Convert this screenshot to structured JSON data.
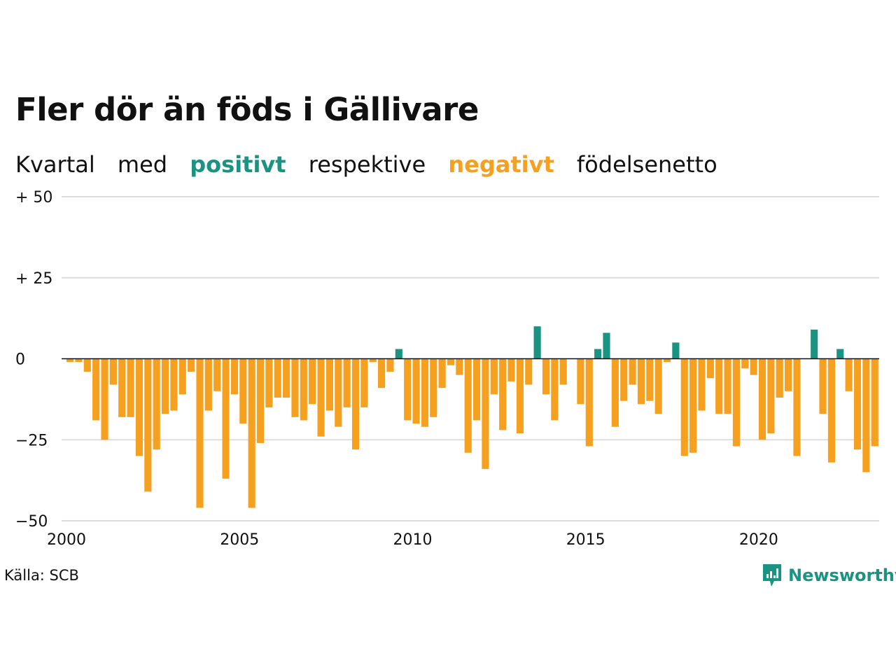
{
  "title": "Fler dör än föds i Gällivare",
  "subtitle": {
    "part1": "Kvartal",
    "part2": "med",
    "positive": "positivt",
    "part3": "respektive",
    "negative": "negativt",
    "part4": "födelsenetto"
  },
  "colors": {
    "positive": "#1a9383",
    "negative": "#f5a01e",
    "grid": "#dddddd",
    "zero_line": "#111111",
    "text": "#111111"
  },
  "source": "Källa: SCB",
  "logo": {
    "text": "Newsworthy",
    "icon": "bar-chart-speech-bubble-icon"
  },
  "chart_data": {
    "type": "bar",
    "title": "Fler dör än föds i Gällivare",
    "xlabel": "",
    "ylabel": "",
    "ylim": [
      -50,
      50
    ],
    "y_ticks": [
      50,
      25,
      0,
      -25,
      -50
    ],
    "y_tick_labels": [
      "+ 50",
      "+ 25",
      "0",
      "−25",
      "−50"
    ],
    "x_ticks": [
      2000,
      2005,
      2010,
      2015,
      2020
    ],
    "x_tick_labels": [
      "2000",
      "2005",
      "2010",
      "2015",
      "2020"
    ],
    "x_range": [
      2000,
      2023.5
    ],
    "grid": true,
    "legend": "none",
    "start_year": 2000,
    "periods_per_year": 4,
    "values": [
      -1,
      -1,
      -4,
      -19,
      -25,
      -8,
      -18,
      -18,
      -30,
      -41,
      -28,
      -17,
      -16,
      -11,
      -4,
      -46,
      -16,
      -10,
      -37,
      -11,
      -20,
      -46,
      -26,
      -15,
      -12,
      -12,
      -18,
      -19,
      -14,
      -24,
      -16,
      -21,
      -15,
      -28,
      -15,
      -1,
      -9,
      -4,
      3,
      -19,
      -20,
      -21,
      -18,
      -9,
      -2,
      -5,
      -29,
      -19,
      -34,
      -11,
      -22,
      -7,
      -23,
      -8,
      10,
      -11,
      -19,
      -8,
      0,
      -14,
      -27,
      3,
      8,
      -21,
      -13,
      -8,
      -14,
      -13,
      -17,
      -1,
      5,
      -30,
      -29,
      -16,
      -6,
      -17,
      -17,
      -27,
      -3,
      -5,
      -25,
      -23,
      -12,
      -10,
      -30,
      0,
      9,
      -17,
      -32,
      3,
      -10,
      -28,
      -35,
      -27
    ]
  }
}
